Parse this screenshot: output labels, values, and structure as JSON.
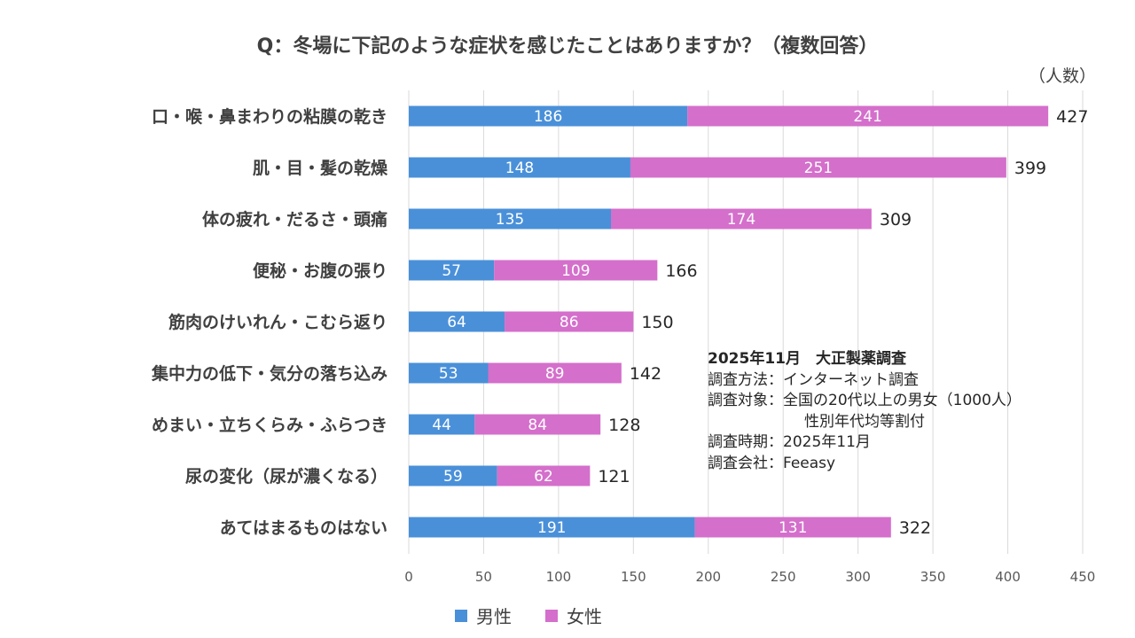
{
  "chart_data": {
    "type": "bar",
    "orientation": "horizontal",
    "stacked": true,
    "title": "Q：冬場に下記のような症状を感じたことはありますか？（複数回答）",
    "unit_label": "（人数）",
    "categories": [
      "口・喉・鼻まわりの粘膜の乾き",
      "肌・目・髪の乾燥",
      "体の疲れ・だるさ・頭痛",
      "便秘・お腹の張り",
      "筋肉のけいれん・こむら返り",
      "集中力の低下・気分の落ち込み",
      "めまい・立ちくらみ・ふらつき",
      "尿の変化（尿が濃くなる）",
      "あてはまるものはない"
    ],
    "series": [
      {
        "name": "男性",
        "color": "#4a90d9",
        "values": [
          186,
          148,
          135,
          57,
          64,
          53,
          44,
          59,
          191
        ]
      },
      {
        "name": "女性",
        "color": "#d46fcb",
        "values": [
          241,
          251,
          174,
          109,
          86,
          89,
          84,
          62,
          131
        ]
      }
    ],
    "totals": [
      427,
      399,
      309,
      166,
      150,
      142,
      128,
      121,
      322
    ],
    "xlim": [
      0,
      450
    ],
    "xticks": [
      "0",
      "50",
      "100",
      "150",
      "200",
      "250",
      "300",
      "350",
      "400",
      "450"
    ],
    "grid": true,
    "legend_position": "bottom"
  },
  "note": {
    "heading": "2025年11月　大正製薬調査",
    "lines": [
      "調査方法：インターネット調査",
      "調査対象：全国の20代以上の男女（1000人）"
    ],
    "indent_line": "性別年代均等割付",
    "lines2": [
      "調査時期：2025年11月",
      "調査会社：Feeasy"
    ]
  }
}
